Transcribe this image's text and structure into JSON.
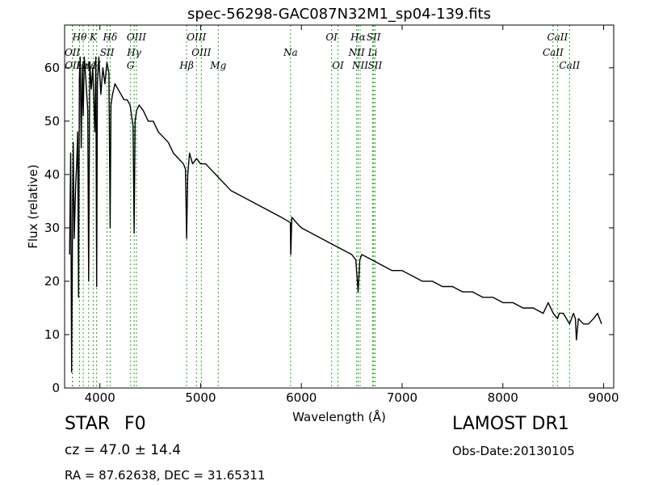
{
  "chart_data": {
    "type": "line",
    "title": "spec-56298-GAC087N32M1_sp04-139.fits",
    "xlabel": "Wavelength (Å)",
    "ylabel": "Flux (relative)",
    "xlim": [
      3650,
      9100
    ],
    "ylim": [
      0,
      68
    ],
    "xticks": [
      4000,
      5000,
      6000,
      7000,
      8000,
      9000
    ],
    "yticks": [
      0,
      10,
      20,
      30,
      40,
      50,
      60
    ],
    "grid": false,
    "series": [
      {
        "color": "#000000",
        "x": [
          3700,
          3710,
          3720,
          3730,
          3736,
          3745,
          3760,
          3770,
          3780,
          3789,
          3797,
          3805,
          3815,
          3825,
          3835,
          3845,
          3860,
          3880,
          3889,
          3900,
          3915,
          3930,
          3950,
          3960,
          3968,
          3975,
          3990,
          4010,
          4030,
          4050,
          4070,
          4090,
          4102,
          4110,
          4125,
          4150,
          4180,
          4210,
          4240,
          4270,
          4300,
          4315,
          4330,
          4340,
          4350,
          4365,
          4390,
          4430,
          4480,
          4530,
          4580,
          4630,
          4680,
          4730,
          4780,
          4830,
          4850,
          4861,
          4872,
          4890,
          4920,
          4960,
          5000,
          5050,
          5100,
          5150,
          5200,
          5300,
          5400,
          5500,
          5600,
          5700,
          5800,
          5890,
          5895,
          5905,
          5950,
          6000,
          6100,
          6200,
          6300,
          6400,
          6500,
          6540,
          6563,
          6580,
          6600,
          6700,
          6800,
          6900,
          7000,
          7100,
          7200,
          7300,
          7400,
          7500,
          7600,
          7700,
          7800,
          7900,
          8000,
          8100,
          8200,
          8300,
          8400,
          8450,
          8500,
          8542,
          8560,
          8600,
          8662,
          8700,
          8720,
          8730,
          8750,
          8800,
          8850,
          8900,
          8940,
          8960,
          8980
        ],
        "y": [
          25,
          44,
          3,
          35,
          46,
          28,
          38,
          42,
          48,
          17,
          58,
          62,
          45,
          60,
          51,
          62,
          58,
          52,
          20,
          61,
          56,
          60,
          48,
          62,
          19,
          57,
          62,
          55,
          60,
          57,
          61,
          59,
          30,
          53,
          55,
          57,
          56,
          55,
          54,
          54,
          53,
          51,
          49,
          29,
          50,
          52,
          53,
          52,
          50,
          50,
          48,
          47,
          46,
          44,
          43,
          42,
          41,
          28,
          40,
          44,
          42,
          43,
          42,
          42,
          41,
          40,
          39,
          37,
          36,
          35,
          34,
          33,
          32,
          31,
          25,
          32,
          31,
          30,
          29,
          28,
          27,
          26,
          25,
          24,
          18,
          24,
          25,
          24,
          23,
          22,
          22,
          21,
          20,
          20,
          19,
          19,
          18,
          18,
          17,
          17,
          16,
          16,
          15,
          15,
          14,
          16,
          14,
          13,
          14,
          14,
          12,
          14,
          13,
          9,
          13,
          12,
          12,
          13,
          14,
          13,
          12
        ]
      }
    ],
    "lines": [
      {
        "label": "Hθ",
        "x": 3798,
        "tier": 1
      },
      {
        "label": "Hη",
        "x": 3835,
        "tier": 3
      },
      {
        "label": "Hε",
        "x": 3889,
        "tier": 3
      },
      {
        "label": "K",
        "x": 3934,
        "tier": 1
      },
      {
        "label": "H",
        "x": 3968,
        "tier": 3
      },
      {
        "label": "SII",
        "x": 4072,
        "tier": 2
      },
      {
        "label": "Hδ",
        "x": 4102,
        "tier": 1
      },
      {
        "label": "OIII",
        "x": 4363,
        "tier": 1
      },
      {
        "label": "Hγ",
        "x": 4340,
        "tier": 2
      },
      {
        "label": "G",
        "x": 4305,
        "tier": 3
      },
      {
        "label": "OIII",
        "x": 4959,
        "tier": 1
      },
      {
        "label": "OIII",
        "x": 5007,
        "tier": 2
      },
      {
        "label": "Hβ",
        "x": 4861,
        "tier": 3
      },
      {
        "label": "Mg",
        "x": 5175,
        "tier": 3
      },
      {
        "label": "Na",
        "x": 5893,
        "tier": 2
      },
      {
        "label": "OI",
        "x": 6300,
        "tier": 1
      },
      {
        "label": "OI",
        "x": 6363,
        "tier": 3
      },
      {
        "label": "Hα",
        "x": 6563,
        "tier": 1
      },
      {
        "label": "SII",
        "x": 6717,
        "tier": 1
      },
      {
        "label": "NII",
        "x": 6548,
        "tier": 2
      },
      {
        "label": "Li",
        "x": 6708,
        "tier": 2
      },
      {
        "label": "NII",
        "x": 6583,
        "tier": 3
      },
      {
        "label": "SII",
        "x": 6731,
        "tier": 3
      },
      {
        "label": "OII",
        "x": 3727,
        "tier": 2
      },
      {
        "label": "OII",
        "x": 3729,
        "tier": 3
      },
      {
        "label": "CaII",
        "x": 8498,
        "tier": 2
      },
      {
        "label": "CaII",
        "x": 8542,
        "tier": 1
      },
      {
        "label": "CaII",
        "x": 8662,
        "tier": 3
      }
    ],
    "line_color": "#2ca02c"
  },
  "info": {
    "class_label": "STAR",
    "subclass": "F0",
    "cz": "cz = 47.0  ± 14.4",
    "radec": "RA = 87.62638, DEC = 31.65311",
    "survey": "LAMOST DR1",
    "obs_date": "Obs-Date:20130105"
  }
}
